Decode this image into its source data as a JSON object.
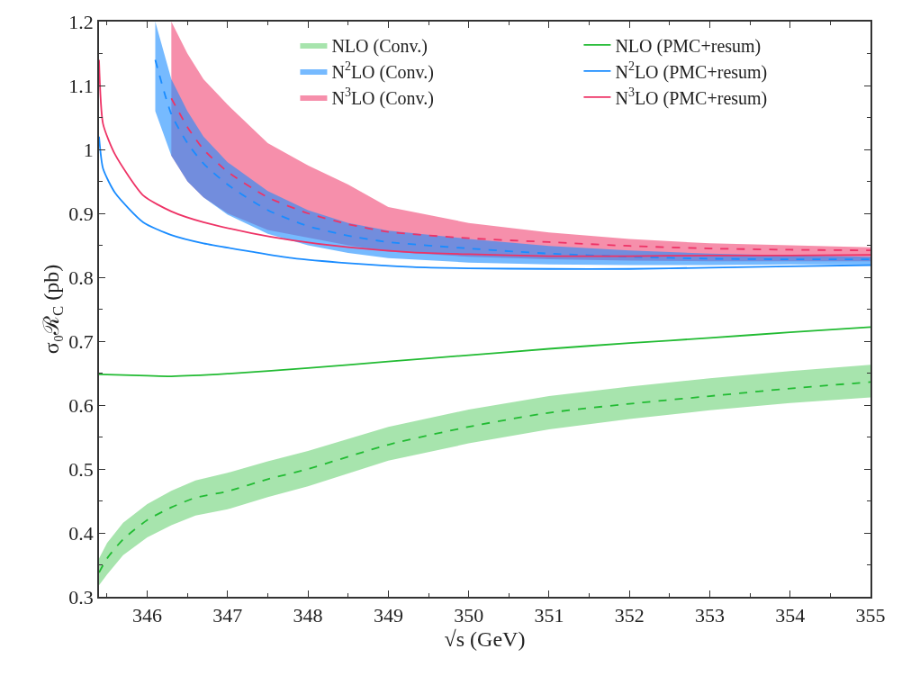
{
  "chart_data": {
    "type": "line",
    "xlabel": "√s (GeV)",
    "ylabel": "σ₀ℛ$_{C}$ (pb)",
    "xlim": [
      345.4,
      355
    ],
    "xticks": [
      346,
      347,
      348,
      349,
      350,
      351,
      352,
      353,
      354,
      355
    ],
    "ylim": [
      0.3,
      1.2
    ],
    "yticks": [
      0.3,
      0.4,
      0.5,
      0.6,
      0.7,
      0.8,
      0.9,
      1,
      1.1,
      1.2
    ],
    "legend": "top right",
    "marker": "none",
    "series": [
      {
        "name": "NLO (Conv.)",
        "color": "#22bb33",
        "line_style": "dashed",
        "x": [
          345.4,
          345.5,
          345.7,
          346,
          346.3,
          346.6,
          347,
          347.5,
          348,
          349,
          350,
          351,
          352,
          353,
          354,
          355
        ],
        "values": [
          0.338,
          0.36,
          0.39,
          0.42,
          0.44,
          0.455,
          0.465,
          0.484,
          0.5,
          0.538,
          0.566,
          0.588,
          0.602,
          0.614,
          0.626,
          0.636
        ],
        "lower": [
          0.318,
          0.335,
          0.365,
          0.393,
          0.412,
          0.427,
          0.437,
          0.456,
          0.473,
          0.513,
          0.54,
          0.562,
          0.578,
          0.592,
          0.603,
          0.612
        ],
        "upper": [
          0.36,
          0.384,
          0.416,
          0.445,
          0.466,
          0.482,
          0.494,
          0.512,
          0.528,
          0.566,
          0.593,
          0.614,
          0.629,
          0.642,
          0.653,
          0.663
        ]
      },
      {
        "name": "NLO (PMC+resum)",
        "color": "#22bb33",
        "line_style": "solid",
        "x": [
          345.4,
          346,
          346.3,
          347,
          348,
          349,
          350,
          351,
          352,
          353,
          354,
          355
        ],
        "values": [
          0.648,
          0.646,
          0.645,
          0.649,
          0.658,
          0.668,
          0.678,
          0.688,
          0.697,
          0.705,
          0.714,
          0.722
        ]
      },
      {
        "name": "N$^{2}$LO (Conv.)",
        "color": "#1a8cff",
        "line_style": "dashed",
        "x": [
          346.1,
          346.3,
          346.5,
          346.7,
          347,
          347.5,
          348,
          348.5,
          349,
          350,
          351,
          352,
          353,
          354,
          355
        ],
        "values": [
          1.14,
          1.055,
          1.01,
          0.978,
          0.945,
          0.905,
          0.88,
          0.865,
          0.855,
          0.845,
          0.837,
          0.832,
          0.829,
          0.828,
          0.828
        ],
        "lower": [
          1.06,
          0.99,
          0.95,
          0.925,
          0.898,
          0.868,
          0.85,
          0.838,
          0.83,
          0.823,
          0.82,
          0.819,
          0.819,
          0.82,
          0.82
        ],
        "upper": [
          1.2,
          1.11,
          1.06,
          1.02,
          0.98,
          0.935,
          0.905,
          0.885,
          0.873,
          0.86,
          0.849,
          0.842,
          0.837,
          0.834,
          0.832
        ]
      },
      {
        "name": "N$^{2}$LO (PMC+resum)",
        "color": "#1a8cff",
        "line_style": "solid",
        "x": [
          345.4,
          345.45,
          345.6,
          345.95,
          346.3,
          346.7,
          347.3,
          347.8,
          348.5,
          349.3,
          350,
          351,
          352,
          353,
          354,
          355
        ],
        "values": [
          1.02,
          0.97,
          0.932,
          0.886,
          0.866,
          0.853,
          0.84,
          0.83,
          0.822,
          0.816,
          0.814,
          0.813,
          0.813,
          0.815,
          0.817,
          0.819
        ]
      },
      {
        "name": "N$^{3}$LO (Conv.)",
        "color": "#ee3366",
        "line_style": "dashed",
        "x": [
          346.3,
          346.5,
          346.7,
          347,
          347.5,
          348,
          348.5,
          349,
          350,
          351,
          352,
          353,
          354,
          355
        ],
        "values": [
          1.08,
          1.035,
          1.0,
          0.965,
          0.925,
          0.9,
          0.883,
          0.871,
          0.861,
          0.855,
          0.849,
          0.845,
          0.843,
          0.842
        ],
        "lower": [
          0.99,
          0.95,
          0.925,
          0.9,
          0.874,
          0.862,
          0.85,
          0.84,
          0.832,
          0.828,
          0.826,
          0.825,
          0.825,
          0.825
        ],
        "upper": [
          1.2,
          1.15,
          1.11,
          1.07,
          1.01,
          0.975,
          0.945,
          0.91,
          0.885,
          0.87,
          0.86,
          0.853,
          0.85,
          0.847
        ]
      },
      {
        "name": "N$^{3}$LO (PMC+resum)",
        "color": "#ee3366",
        "line_style": "solid",
        "x": [
          345.4,
          345.45,
          345.6,
          345.95,
          346.3,
          346.7,
          347.3,
          347.8,
          348.5,
          349.3,
          350,
          351,
          352,
          353,
          354,
          355
        ],
        "values": [
          1.14,
          1.04,
          0.992,
          0.928,
          0.903,
          0.886,
          0.869,
          0.858,
          0.847,
          0.839,
          0.836,
          0.833,
          0.833,
          0.834,
          0.834,
          0.835
        ]
      }
    ]
  }
}
